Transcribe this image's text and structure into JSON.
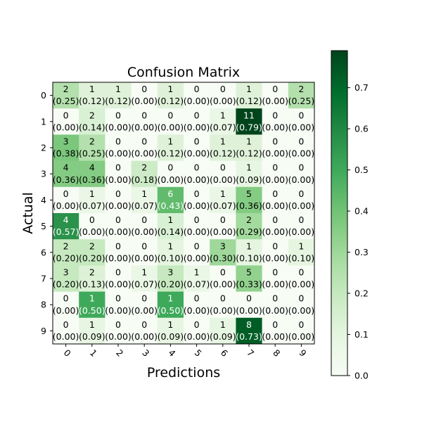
{
  "chart_data": {
    "type": "heatmap",
    "title": "Confusion Matrix",
    "xlabel": "Predictions",
    "ylabel": "Actual",
    "x_categories": [
      "0",
      "1",
      "2",
      "3",
      "4",
      "5",
      "6",
      "7",
      "8",
      "9"
    ],
    "y_categories": [
      "0",
      "1",
      "2",
      "3",
      "4",
      "5",
      "6",
      "7",
      "8",
      "9"
    ],
    "counts": [
      [
        2,
        1,
        1,
        0,
        1,
        0,
        0,
        1,
        0,
        2
      ],
      [
        0,
        2,
        0,
        0,
        0,
        0,
        1,
        11,
        0,
        0
      ],
      [
        3,
        2,
        0,
        0,
        1,
        0,
        1,
        1,
        0,
        0
      ],
      [
        4,
        4,
        0,
        2,
        0,
        0,
        0,
        1,
        0,
        0
      ],
      [
        0,
        1,
        0,
        1,
        6,
        0,
        1,
        5,
        0,
        0
      ],
      [
        4,
        0,
        0,
        0,
        1,
        0,
        0,
        2,
        0,
        0
      ],
      [
        2,
        2,
        0,
        0,
        1,
        0,
        3,
        1,
        0,
        1
      ],
      [
        3,
        2,
        0,
        1,
        3,
        1,
        0,
        5,
        0,
        0
      ],
      [
        0,
        1,
        0,
        0,
        1,
        0,
        0,
        0,
        0,
        0
      ],
      [
        0,
        1,
        0,
        0,
        1,
        0,
        1,
        8,
        0,
        0
      ]
    ],
    "fractions": [
      [
        "0.25",
        "0.12",
        "0.12",
        "0.00",
        "0.12",
        "0.00",
        "0.00",
        "0.12",
        "0.00",
        "0.25"
      ],
      [
        "0.00",
        "0.14",
        "0.00",
        "0.00",
        "0.00",
        "0.00",
        "0.07",
        "0.79",
        "0.00",
        "0.00"
      ],
      [
        "0.38",
        "0.25",
        "0.00",
        "0.00",
        "0.12",
        "0.00",
        "0.12",
        "0.12",
        "0.00",
        "0.00"
      ],
      [
        "0.36",
        "0.36",
        "0.00",
        "0.18",
        "0.00",
        "0.00",
        "0.00",
        "0.09",
        "0.00",
        "0.00"
      ],
      [
        "0.00",
        "0.07",
        "0.00",
        "0.07",
        "0.43",
        "0.00",
        "0.07",
        "0.36",
        "0.00",
        "0.00"
      ],
      [
        "0.57",
        "0.00",
        "0.00",
        "0.00",
        "0.14",
        "0.00",
        "0.00",
        "0.29",
        "0.00",
        "0.00"
      ],
      [
        "0.20",
        "0.20",
        "0.00",
        "0.00",
        "0.10",
        "0.00",
        "0.30",
        "0.10",
        "0.00",
        "0.10"
      ],
      [
        "0.20",
        "0.13",
        "0.00",
        "0.07",
        "0.20",
        "0.07",
        "0.00",
        "0.33",
        "0.00",
        "0.00"
      ],
      [
        "0.00",
        "0.50",
        "0.00",
        "0.00",
        "0.50",
        "0.00",
        "0.00",
        "0.00",
        "0.00",
        "0.00"
      ],
      [
        "0.00",
        "0.09",
        "0.00",
        "0.00",
        "0.09",
        "0.00",
        "0.09",
        "0.73",
        "0.00",
        "0.00"
      ]
    ],
    "colorbar": {
      "min": 0,
      "max": 0.79,
      "ticks": [
        0.0,
        0.1,
        0.2,
        0.3,
        0.4,
        0.5,
        0.6,
        0.7
      ],
      "tick_labels": [
        "0.0",
        "0.1",
        "0.2",
        "0.3",
        "0.4",
        "0.5",
        "0.6",
        "0.7"
      ],
      "colormap": "Greens"
    },
    "grid": false,
    "legend": "colorbar-right"
  }
}
